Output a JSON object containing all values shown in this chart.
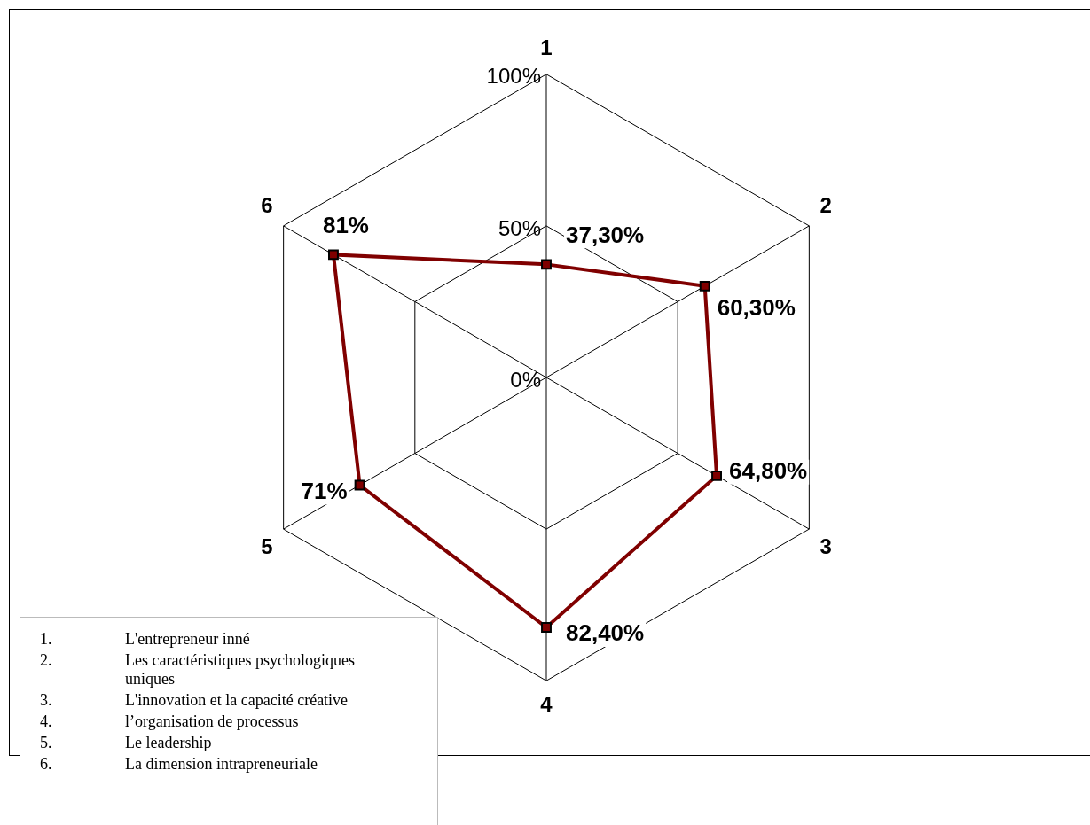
{
  "chart_data": {
    "type": "radar",
    "categories": [
      "1",
      "2",
      "3",
      "4",
      "5",
      "6"
    ],
    "series": [
      {
        "color": "#800000",
        "values": [
          37.3,
          60.3,
          64.8,
          82.4,
          71,
          81
        ],
        "value_labels": [
          "37,30%",
          "60,30%",
          "64,80%",
          "82,40%",
          "71%",
          "81%"
        ]
      }
    ],
    "ylim": [
      0,
      100
    ],
    "yticks": [
      {
        "value": 0,
        "label": "0%"
      },
      {
        "value": 50,
        "label": "50%"
      },
      {
        "value": 100,
        "label": "100%"
      }
    ],
    "grid": true,
    "marker": "square",
    "legend": false,
    "annotations": [
      "1.\tL'entrepreneur inné",
      "2.\tLes caractéristiques psychologiques uniques",
      "3.\tL'innovation et la capacité créative",
      "4.\tl’organisation de processus",
      "5.\tLe leadership",
      "6.\tLa dimension intrapreneuriale"
    ]
  }
}
